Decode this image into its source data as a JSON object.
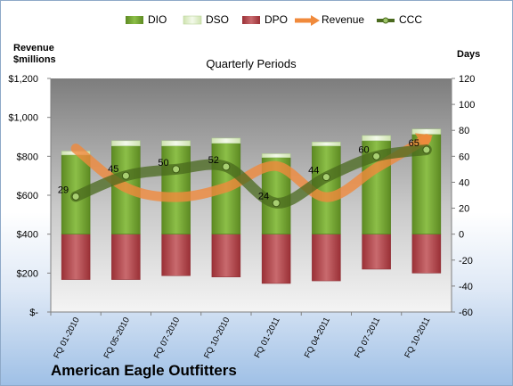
{
  "company_label": "American Eagle Outfitters",
  "colors": {
    "dio": "#6b9a2c",
    "dso": "#dbeec0",
    "dpo": "#b2444a",
    "revenue": "#f08a3c",
    "ccc": "#4a6a1e"
  },
  "chart_data": {
    "type": "bar",
    "title": "Quarterly Periods",
    "left_axis_label": "Revenue\n$millions",
    "right_axis_label": "Days",
    "categories": [
      "FQ 01-2010",
      "FQ 05-2010",
      "FQ 07-2010",
      "FQ 10-2010",
      "FQ 01-2011",
      "FQ 04-2011",
      "FQ 07-2011",
      "FQ 10-2011"
    ],
    "left_ticks": [
      "$-",
      "$200",
      "$400",
      "$600",
      "$800",
      "$1,000",
      "$1,200"
    ],
    "left_ylim": [
      0,
      1200
    ],
    "right_ticks": [
      "-60",
      "-40",
      "-20",
      "0",
      "20",
      "40",
      "60",
      "80",
      "100",
      "120"
    ],
    "right_ylim": [
      -60,
      120
    ],
    "grid": false,
    "legend_position": "top",
    "series": [
      {
        "name": "DIO",
        "kind": "bar-stack-up",
        "axis": "right",
        "values": [
          61,
          68,
          68,
          70,
          59,
          68,
          72,
          77
        ]
      },
      {
        "name": "DSO",
        "kind": "bar-stack-up",
        "axis": "right",
        "values": [
          3,
          4,
          4,
          4,
          3,
          3,
          4,
          4
        ]
      },
      {
        "name": "DPO",
        "kind": "bar-stack-down",
        "axis": "right",
        "values": [
          -35,
          -35,
          -32,
          -33,
          -38,
          -36,
          -27,
          -30
        ]
      },
      {
        "name": "Revenue",
        "kind": "line",
        "axis": "left",
        "values": [
          840,
          640,
          590,
          640,
          750,
          590,
          740,
          890
        ]
      },
      {
        "name": "CCC",
        "kind": "line",
        "axis": "right",
        "values": [
          29,
          45,
          50,
          52,
          24,
          44,
          60,
          65
        ]
      }
    ],
    "ccc_labels": [
      "29",
      "45",
      "50",
      "52",
      "24",
      "44",
      "60",
      "65"
    ]
  }
}
